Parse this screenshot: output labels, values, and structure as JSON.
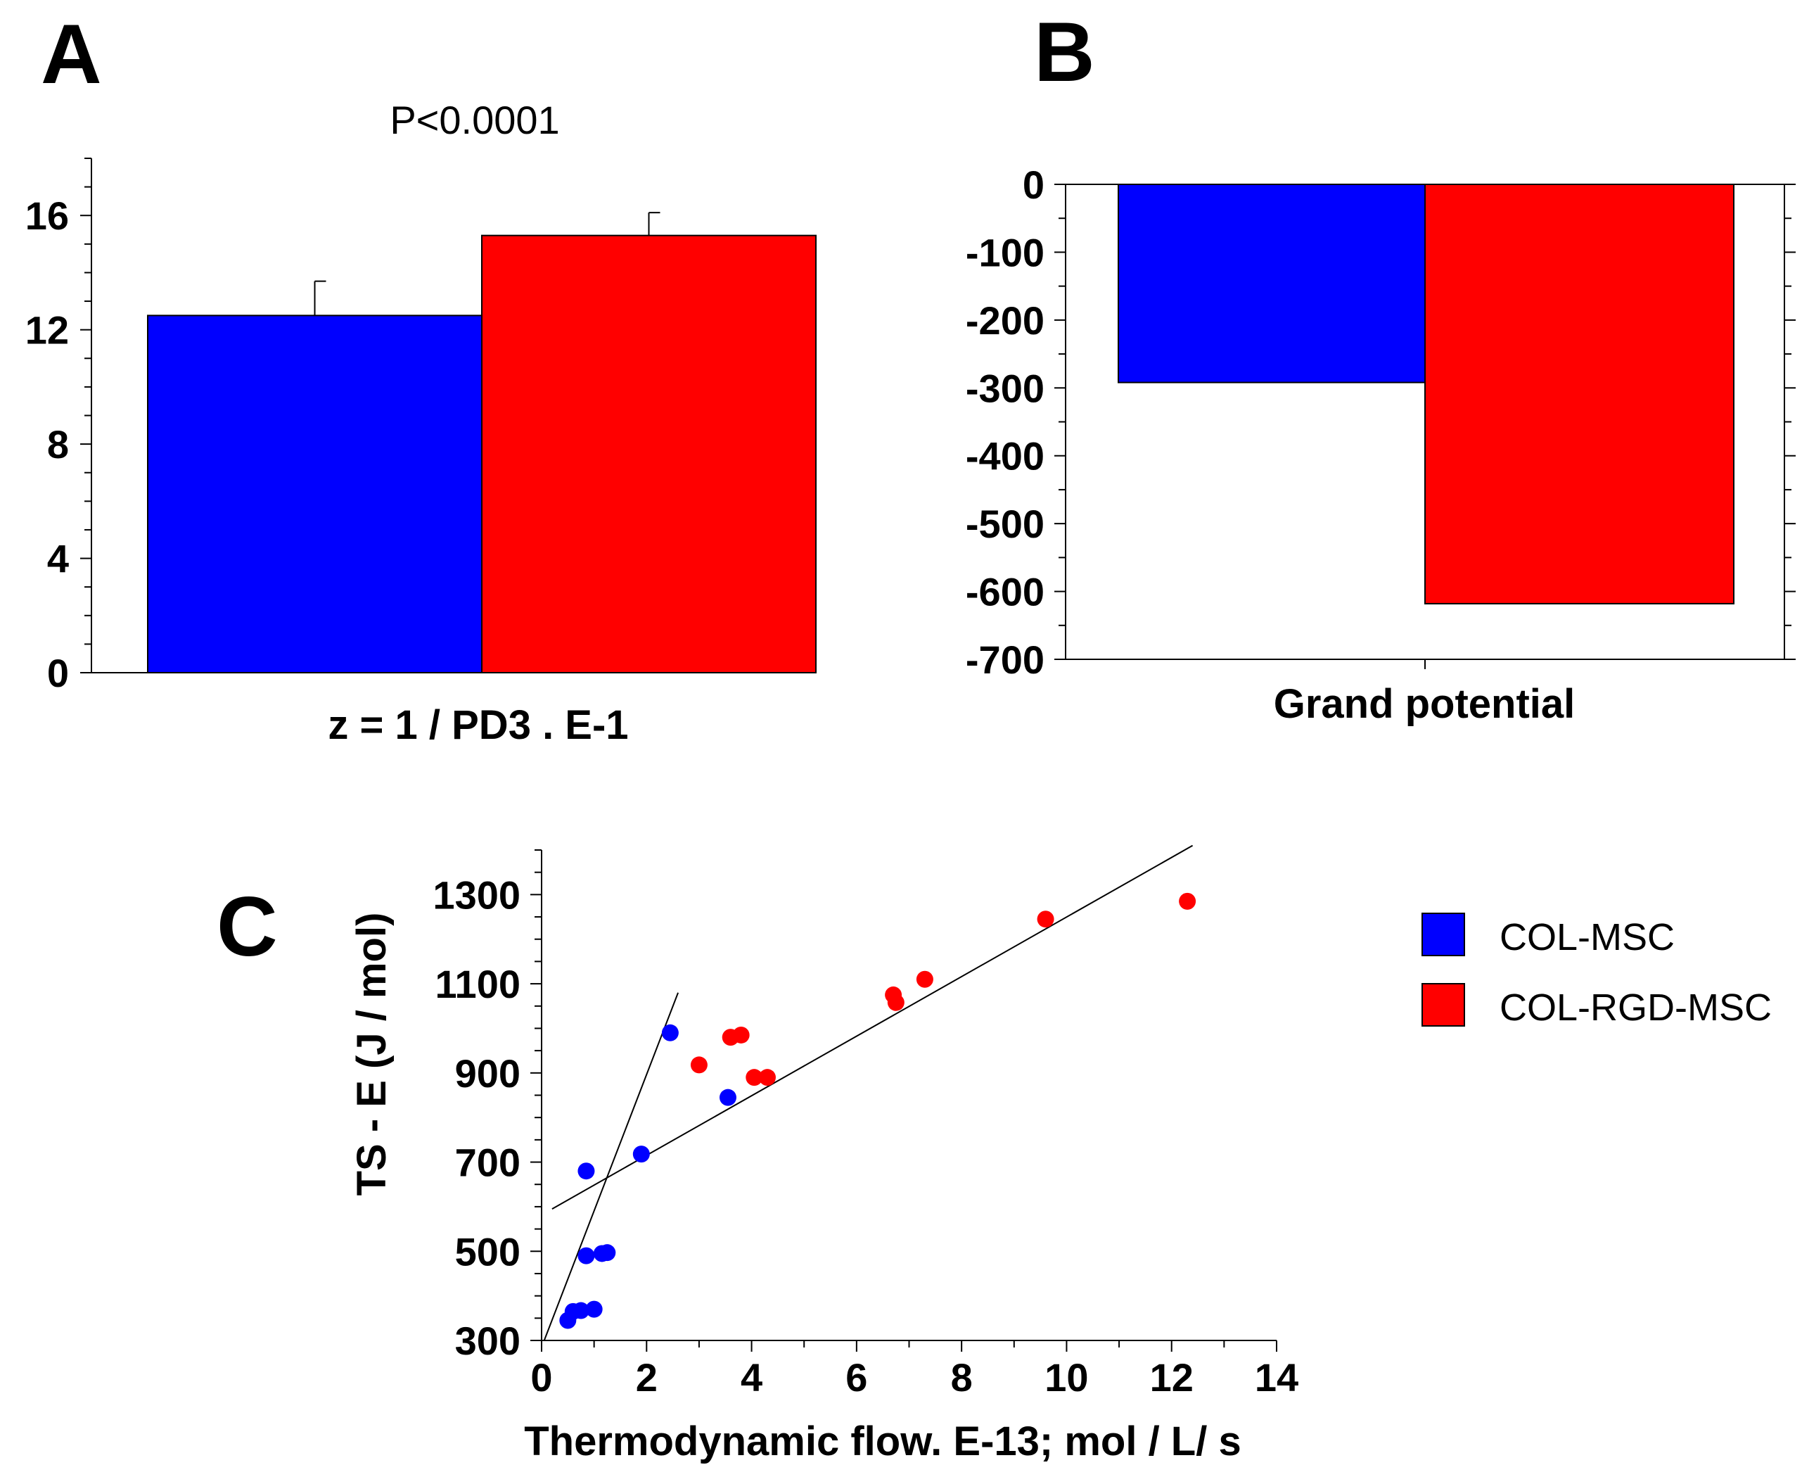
{
  "figure": {
    "panel_labels": [
      "A",
      "B",
      "C"
    ]
  },
  "colors": {
    "blue": "#0000ff",
    "red": "#ff0000",
    "axis": "#000000"
  },
  "chart_data": [
    {
      "id": "A",
      "type": "bar",
      "title": "",
      "annotation": "P<0.0001",
      "xlabel": "z = 1 / PD3 . E-1",
      "ylabel": "",
      "ylim": [
        0,
        18
      ],
      "yticks": [
        0,
        4,
        8,
        12,
        16
      ],
      "series": [
        {
          "name": "COL-MSC",
          "value": 12.5,
          "error": 1.2,
          "color": "#0000ff"
        },
        {
          "name": "COL-RGD-MSC",
          "value": 15.3,
          "error": 0.8,
          "color": "#ff0000"
        }
      ]
    },
    {
      "id": "B",
      "type": "bar",
      "title": "",
      "xlabel": "Grand potential",
      "ylabel": "",
      "ylim": [
        -700,
        0
      ],
      "yticks": [
        0,
        -100,
        -200,
        -300,
        -400,
        -500,
        -600,
        -700
      ],
      "series": [
        {
          "name": "COL-MSC",
          "value": -292,
          "color": "#0000ff"
        },
        {
          "name": "COL-RGD-MSC",
          "value": -618,
          "color": "#ff0000"
        }
      ]
    },
    {
      "id": "C",
      "type": "scatter",
      "title": "",
      "xlabel": "Thermodynamic flow. E-13; mol / L/ s",
      "ylabel": "TS - E  (J / mol)",
      "xlim": [
        0,
        14
      ],
      "ylim": [
        300,
        1400
      ],
      "xticks": [
        0,
        2,
        4,
        6,
        8,
        10,
        12,
        14
      ],
      "yticks": [
        300,
        500,
        700,
        900,
        1100,
        1300
      ],
      "legend": "right",
      "series": [
        {
          "name": "COL-MSC",
          "color": "#0000ff",
          "points": [
            [
              0.5,
              345
            ],
            [
              0.6,
              365
            ],
            [
              0.75,
              367
            ],
            [
              1.0,
              370
            ],
            [
              0.85,
              490
            ],
            [
              1.15,
              495
            ],
            [
              1.25,
              497
            ],
            [
              0.85,
              680
            ],
            [
              1.9,
              718
            ],
            [
              2.45,
              990
            ],
            [
              3.55,
              845
            ]
          ]
        },
        {
          "name": "COL-RGD-MSC",
          "color": "#ff0000",
          "points": [
            [
              3.0,
              918
            ],
            [
              3.6,
              980
            ],
            [
              3.8,
              985
            ],
            [
              4.05,
              890
            ],
            [
              4.3,
              890
            ],
            [
              6.7,
              1075
            ],
            [
              6.75,
              1058
            ],
            [
              7.3,
              1110
            ],
            [
              9.6,
              1245
            ],
            [
              12.3,
              1285
            ]
          ]
        }
      ],
      "fit_lines": [
        {
          "name": "steep",
          "from": [
            0.05,
            300
          ],
          "to": [
            2.6,
            1080
          ]
        },
        {
          "name": "shallow",
          "from": [
            0.2,
            595
          ],
          "to": [
            12.4,
            1410
          ]
        }
      ]
    }
  ]
}
